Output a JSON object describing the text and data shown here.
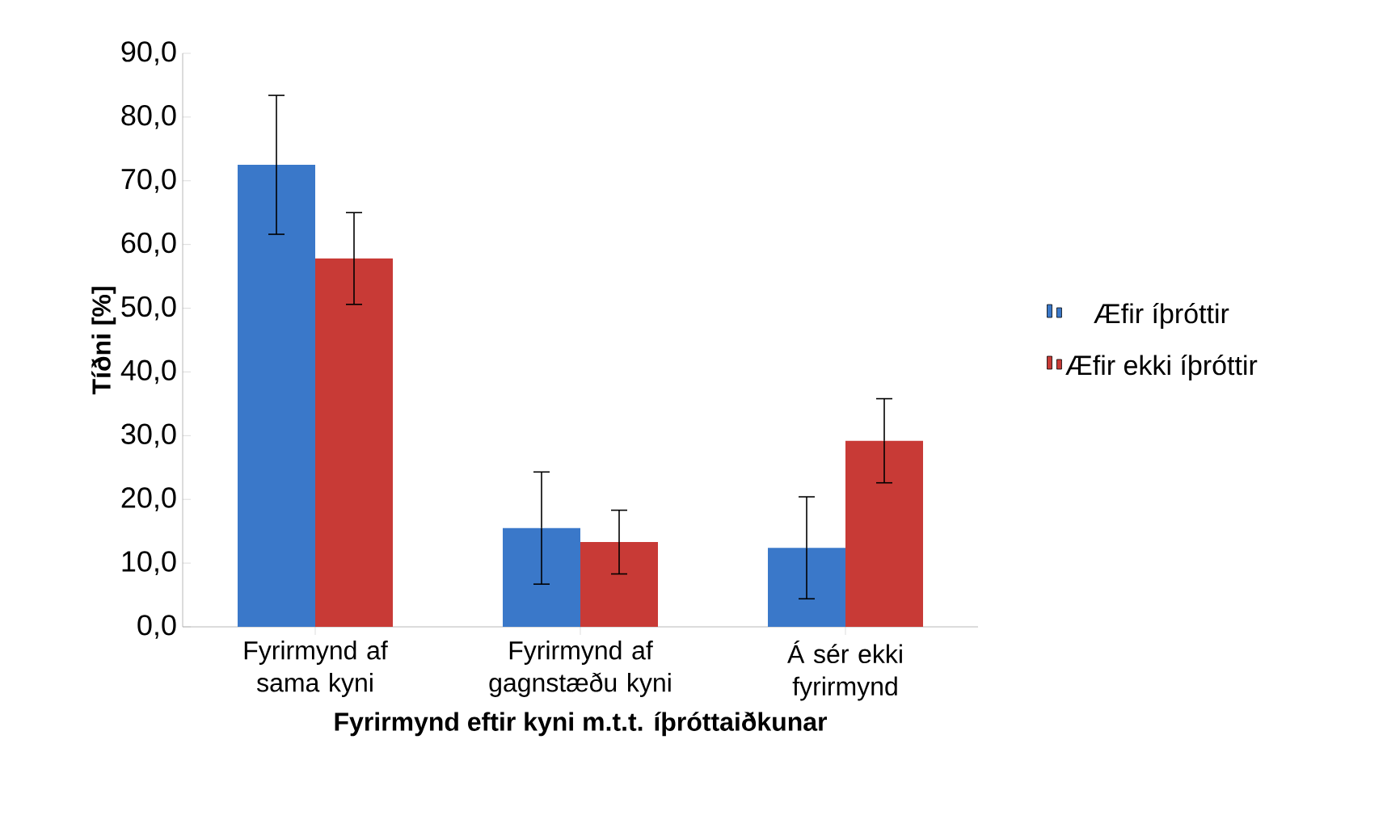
{
  "chart_data": {
    "type": "bar",
    "xlabel": "Fyrirmynd eftir kyni m.t.t. íþróttaiðkunar",
    "ylabel": "Tíðni [%]",
    "categories": [
      "Fyrirmynd af sama kyni",
      "Fyrirmynd af gagnstæðu kyni",
      "Á sér ekki fyrirmynd"
    ],
    "series": [
      {
        "name": "Æfir íþróttir",
        "color": "#3a78c9",
        "values": [
          72.5,
          15.5,
          12.4
        ],
        "errors": [
          10.9,
          8.8,
          8.0
        ]
      },
      {
        "name": "Æfir ekki íþróttir",
        "color": "#c83a36",
        "values": [
          57.8,
          13.3,
          29.2
        ],
        "errors": [
          7.2,
          5.0,
          6.6
        ]
      }
    ],
    "ylim": [
      0,
      90
    ],
    "yticks": [
      {
        "value": 0,
        "label": "0,0"
      },
      {
        "value": 10,
        "label": "10,0"
      },
      {
        "value": 20,
        "label": "20,0"
      },
      {
        "value": 30,
        "label": "30,0"
      },
      {
        "value": 40,
        "label": "40,0"
      },
      {
        "value": 50,
        "label": "50,0"
      },
      {
        "value": 60,
        "label": "60,0"
      },
      {
        "value": 70,
        "label": "70,0"
      },
      {
        "value": 80,
        "label": "80,0"
      },
      {
        "value": 90,
        "label": "90,0"
      }
    ],
    "grid": false,
    "legend": "right"
  }
}
